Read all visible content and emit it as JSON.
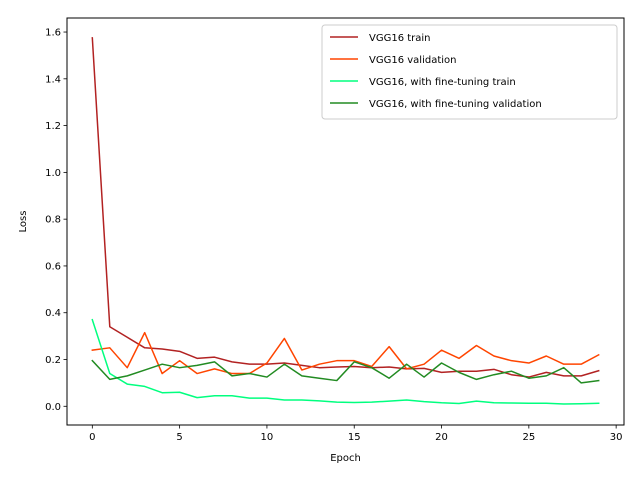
{
  "chart_data": {
    "type": "line",
    "title": "",
    "xlabel": "Epoch",
    "ylabel": "Loss",
    "xlim": [
      -1.45,
      30.45
    ],
    "ylim": [
      -0.08,
      1.66
    ],
    "xticks": [
      0,
      5,
      10,
      15,
      20,
      25,
      30
    ],
    "yticks": [
      0.0,
      0.2,
      0.4,
      0.6,
      0.8,
      1.0,
      1.2,
      1.4,
      1.6
    ],
    "xtick_labels": [
      "0",
      "5",
      "10",
      "15",
      "20",
      "25",
      "30"
    ],
    "ytick_labels": [
      "0.0",
      "0.2",
      "0.4",
      "0.6",
      "0.8",
      "1.0",
      "1.2",
      "1.4",
      "1.6"
    ],
    "grid": false,
    "legend_position": "upper right",
    "x": [
      0,
      1,
      2,
      3,
      4,
      5,
      6,
      7,
      8,
      9,
      10,
      11,
      12,
      13,
      14,
      15,
      16,
      17,
      18,
      19,
      20,
      21,
      22,
      23,
      24,
      25,
      26,
      27,
      28,
      29
    ],
    "series": [
      {
        "name": "VGG16 train",
        "color": "#b22222",
        "values": [
          1.575,
          0.34,
          0.295,
          0.25,
          0.245,
          0.235,
          0.205,
          0.21,
          0.19,
          0.18,
          0.18,
          0.185,
          0.175,
          0.165,
          0.168,
          0.17,
          0.165,
          0.168,
          0.16,
          0.162,
          0.145,
          0.15,
          0.15,
          0.158,
          0.135,
          0.125,
          0.145,
          0.13,
          0.13,
          0.152
        ]
      },
      {
        "name": "VGG16 validation",
        "color": "#ff4500",
        "values": [
          0.24,
          0.25,
          0.165,
          0.315,
          0.14,
          0.195,
          0.14,
          0.16,
          0.14,
          0.14,
          0.185,
          0.29,
          0.155,
          0.18,
          0.195,
          0.195,
          0.17,
          0.255,
          0.16,
          0.18,
          0.24,
          0.205,
          0.26,
          0.215,
          0.195,
          0.185,
          0.215,
          0.18,
          0.18,
          0.22
        ]
      },
      {
        "name": "VGG16, with fine-tuning train",
        "color": "#00ff7f",
        "values": [
          0.37,
          0.14,
          0.095,
          0.085,
          0.058,
          0.06,
          0.037,
          0.045,
          0.045,
          0.035,
          0.035,
          0.027,
          0.027,
          0.023,
          0.018,
          0.016,
          0.018,
          0.022,
          0.027,
          0.02,
          0.015,
          0.012,
          0.022,
          0.015,
          0.014,
          0.013,
          0.013,
          0.01,
          0.011,
          0.013
        ]
      },
      {
        "name": "VGG16, with fine-tuning validation",
        "color": "#228b22",
        "values": [
          0.195,
          0.115,
          0.13,
          0.155,
          0.18,
          0.165,
          0.175,
          0.19,
          0.13,
          0.14,
          0.125,
          0.18,
          0.13,
          0.12,
          0.11,
          0.19,
          0.165,
          0.12,
          0.18,
          0.125,
          0.185,
          0.145,
          0.115,
          0.135,
          0.15,
          0.12,
          0.13,
          0.165,
          0.1,
          0.11
        ]
      }
    ]
  }
}
